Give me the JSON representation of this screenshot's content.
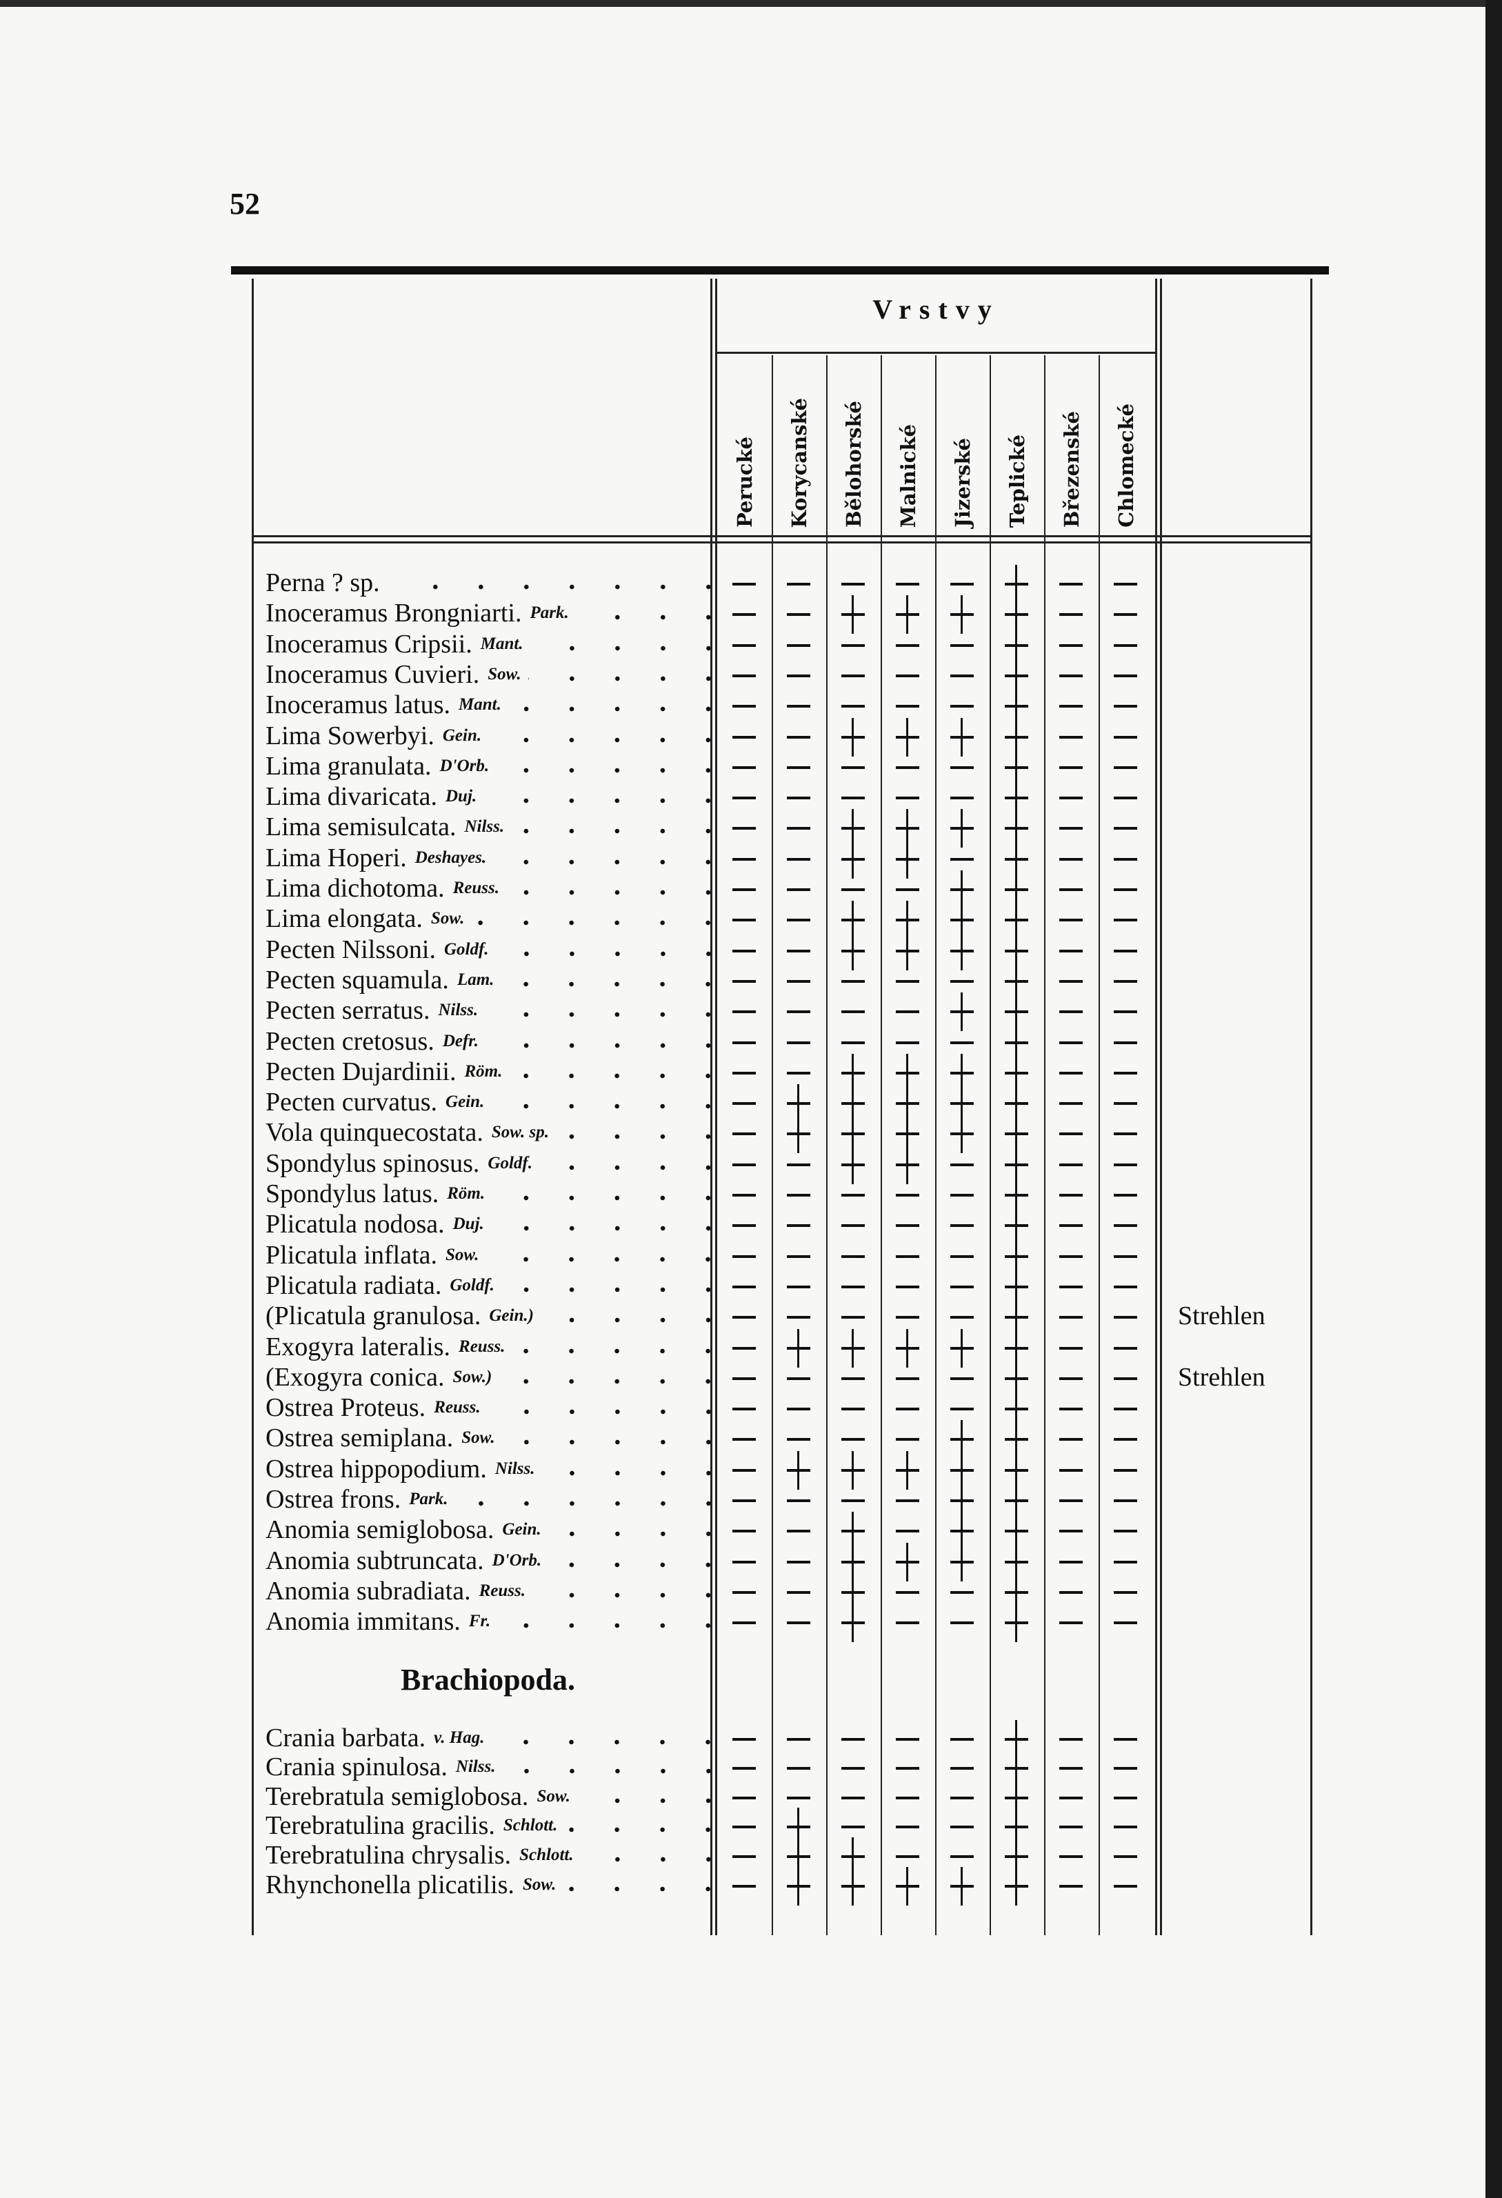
{
  "page_number": "52",
  "header": {
    "group_title": "Vrstvy",
    "columns": [
      "Perucké",
      "Korycanské",
      "Bělohorské",
      "Malnické",
      "Jizerské",
      "Teplické",
      "Březenské",
      "Chlomecké"
    ]
  },
  "sections": [
    {
      "title": "",
      "rows": [
        {
          "name": "Perna ? sp.",
          "author": "",
          "marks": "-----+--"
        },
        {
          "name": "Inoceramus Brongniarti.",
          "author": "Park.",
          "marks": "--++++--"
        },
        {
          "name": "Inoceramus Cripsii.",
          "author": "Mant.",
          "marks": "-----+--"
        },
        {
          "name": "Inoceramus Cuvieri.",
          "author": "Sow.",
          "marks": "-----+--"
        },
        {
          "name": "Inoceramus latus.",
          "author": "Mant.",
          "marks": "-----+--"
        },
        {
          "name": "Lima Sowerbyi.",
          "author": "Gein.",
          "marks": "--++++--"
        },
        {
          "name": "Lima granulata.",
          "author": "D'Orb.",
          "marks": "-----+--"
        },
        {
          "name": "Lima divaricata.",
          "author": "Duj.",
          "marks": "-----+--"
        },
        {
          "name": "Lima semisulcata.",
          "author": "Nilss.",
          "marks": "--++++--"
        },
        {
          "name": "Lima Hoperi.",
          "author": "Deshayes.",
          "marks": "--++-+--"
        },
        {
          "name": "Lima dichotoma.",
          "author": "Reuss.",
          "marks": "----++--"
        },
        {
          "name": "Lima elongata.",
          "author": "Sow.",
          "marks": "--++++--"
        },
        {
          "name": "Pecten Nilssoni.",
          "author": "Goldf.",
          "marks": "--++++--"
        },
        {
          "name": "Pecten squamula.",
          "author": "Lam.",
          "marks": "-----+--"
        },
        {
          "name": "Pecten serratus.",
          "author": "Nilss.",
          "marks": "----++--"
        },
        {
          "name": "Pecten cretosus.",
          "author": "Defr.",
          "marks": "-----+--"
        },
        {
          "name": "Pecten Dujardinii.",
          "author": "Röm.",
          "marks": "--++++--"
        },
        {
          "name": "Pecten curvatus.",
          "author": "Gein.",
          "marks": "-+++++--"
        },
        {
          "name": "Vola quinquecostata.",
          "author": "Sow. sp.",
          "marks": "-+++++--"
        },
        {
          "name": "Spondylus spinosus.",
          "author": "Goldf.",
          "marks": "--++-+--"
        },
        {
          "name": "Spondylus latus.",
          "author": "Röm.",
          "marks": "-----+--"
        },
        {
          "name": "Plicatula nodosa.",
          "author": "Duj.",
          "marks": "-----+--"
        },
        {
          "name": "Plicatula inflata.",
          "author": "Sow.",
          "marks": "-----+--"
        },
        {
          "name": "Plicatula radiata.",
          "author": "Goldf.",
          "marks": "-----+--"
        },
        {
          "name": "(Plicatula granulosa.",
          "author": "Gein.)",
          "marks": "-----+--",
          "remark": "Strehlen"
        },
        {
          "name": "Exogyra lateralis.",
          "author": "Reuss.",
          "marks": "-+++++--"
        },
        {
          "name": "(Exogyra conica.",
          "author": "Sow.)",
          "marks": "-----+--",
          "remark": "Strehlen"
        },
        {
          "name": "Ostrea Proteus.",
          "author": "Reuss.",
          "marks": "-----+--"
        },
        {
          "name": "Ostrea semiplana.",
          "author": "Sow.",
          "marks": "----++--"
        },
        {
          "name": "Ostrea hippopodium.",
          "author": "Nilss.",
          "marks": "-+++++--"
        },
        {
          "name": "Ostrea frons.",
          "author": "Park.",
          "marks": "----++--"
        },
        {
          "name": "Anomia semiglobosa.",
          "author": "Gein.",
          "marks": "--+-++--"
        },
        {
          "name": "Anomia subtruncata.",
          "author": "D'Orb.",
          "marks": "--++++--"
        },
        {
          "name": "Anomia subradiata.",
          "author": "Reuss.",
          "marks": "--+--+--"
        },
        {
          "name": "Anomia immitans.",
          "author": "Fr.",
          "marks": "--+--+--"
        }
      ]
    },
    {
      "title": "Brachiopoda.",
      "rows": [
        {
          "name": "Crania barbata.",
          "author": "v. Hag.",
          "marks": "-----+--"
        },
        {
          "name": "Crania spinulosa.",
          "author": "Nilss.",
          "marks": "-----+--"
        },
        {
          "name": "Terebratula semiglobosa.",
          "author": "Sow.",
          "marks": "-----+--"
        },
        {
          "name": "Terebratulina gracilis.",
          "author": "Schlott.",
          "marks": "-+---+--"
        },
        {
          "name": "Terebratulina chrysalis.",
          "author": "Schlott.",
          "marks": "-++--+--"
        },
        {
          "name": "Rhynchonella plicatilis.",
          "author": "Sow.",
          "marks": "-+++++--"
        }
      ]
    }
  ]
}
